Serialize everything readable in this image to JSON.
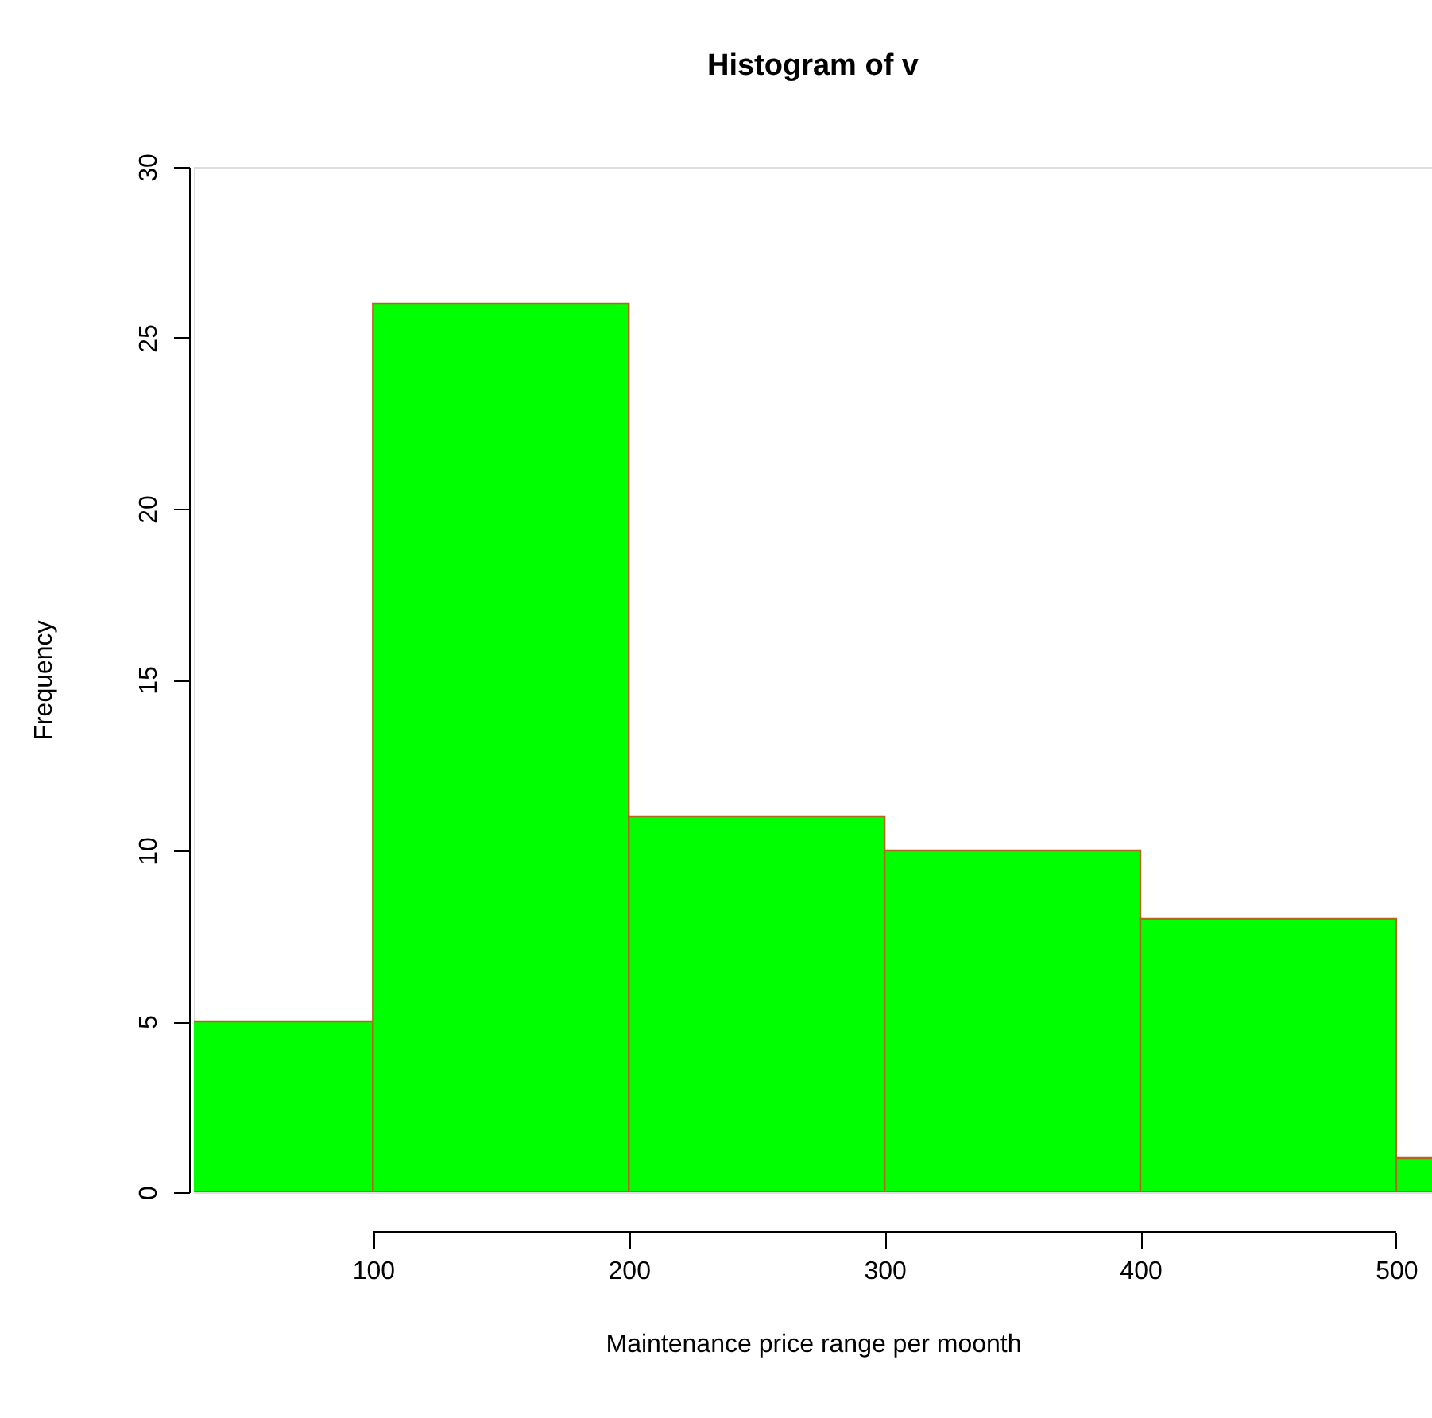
{
  "chart_data": {
    "type": "histogram",
    "title": "Histogram of v",
    "xlabel": "Maintenance price range per moonth",
    "ylabel": "Frequency",
    "bins": [
      0,
      100,
      200,
      300,
      400,
      500,
      600
    ],
    "values": [
      5,
      26,
      11,
      10,
      8,
      1
    ],
    "color": "#00ff00",
    "xlim": [
      30,
      514
    ],
    "xticks": [
      100,
      200,
      300,
      400,
      500
    ],
    "ylim": [
      0,
      30
    ],
    "yticks": [
      0,
      5,
      10,
      15,
      20,
      25,
      30
    ]
  }
}
